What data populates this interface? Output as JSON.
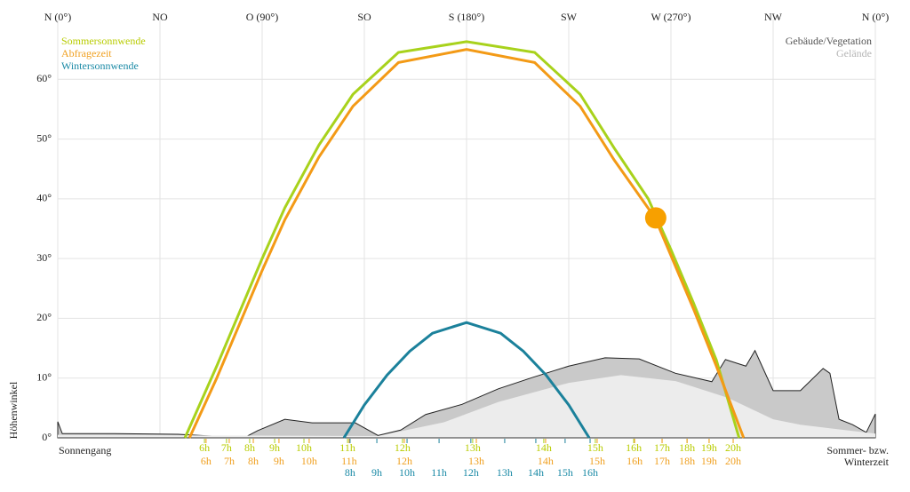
{
  "chart_data": {
    "type": "line",
    "y_label": "Höhenwinkel",
    "bottom_left_label": "Sonnengang",
    "bottom_right_label": [
      "Sommer- bzw.",
      "Winterzeit"
    ],
    "xlim": [
      0,
      360
    ],
    "ylim": [
      0,
      70
    ],
    "grid": true,
    "xticks": [
      {
        "value": 0,
        "label": "N (0°)"
      },
      {
        "value": 45,
        "label": "NO"
      },
      {
        "value": 90,
        "label": "O (90°)"
      },
      {
        "value": 135,
        "label": "SO"
      },
      {
        "value": 180,
        "label": "S (180°)"
      },
      {
        "value": 225,
        "label": "SW"
      },
      {
        "value": 270,
        "label": "W (270°)"
      },
      {
        "value": 315,
        "label": "NW"
      },
      {
        "value": 360,
        "label": "N (0°)"
      }
    ],
    "yticks": [
      {
        "value": 0,
        "label": "0°"
      },
      {
        "value": 10,
        "label": "10°"
      },
      {
        "value": 20,
        "label": "20°"
      },
      {
        "value": 30,
        "label": "30°"
      },
      {
        "value": 40,
        "label": "40°"
      },
      {
        "value": 50,
        "label": "50°"
      },
      {
        "value": 60,
        "label": "60°"
      }
    ],
    "terrain": [
      {
        "name": "Gebäude/Vegetation",
        "color": "#c9c9c9",
        "text_color": "#555555",
        "outline": "#222222",
        "x": [
          0,
          2,
          25,
          53,
          82,
          88,
          100,
          112,
          131,
          141,
          151,
          162,
          178,
          194,
          209,
          225,
          241,
          256,
          272,
          288,
          294,
          303,
          307,
          315,
          327,
          337,
          340,
          344,
          350,
          356,
          360
        ],
        "values": [
          2.7,
          0.7,
          0.7,
          0.6,
          0,
          1.2,
          3.1,
          2.5,
          2.5,
          0.4,
          1.3,
          3.9,
          5.6,
          8.2,
          10.1,
          12,
          13.4,
          13.2,
          10.8,
          9.4,
          13.1,
          12,
          14.6,
          7.9,
          7.9,
          11.6,
          10.8,
          3.1,
          2.2,
          0.9,
          4
        ]
      },
      {
        "name": "Gelände",
        "color": "#ececec",
        "text_color": "#b5b5b5",
        "x": [
          0,
          141,
          170,
          194,
          225,
          248,
          272,
          295,
          315,
          327,
          342,
          360
        ],
        "values": [
          0.5,
          0.3,
          2.6,
          6,
          9.2,
          10.5,
          9.5,
          6.7,
          3.1,
          2.2,
          1.5,
          0.7
        ]
      }
    ],
    "series": [
      {
        "name": "Sommersonnwende",
        "color": "#a8d21c",
        "text_color": "#b8cc00",
        "x": [
          56,
          70,
          80,
          90,
          100,
          115,
          130,
          150,
          180,
          210,
          230,
          245,
          260,
          270,
          280,
          290,
          300
        ],
        "values": [
          0,
          12,
          21,
          30,
          38.5,
          49,
          57.5,
          64.5,
          66.3,
          64.5,
          57.5,
          48.5,
          40,
          31.5,
          22.5,
          13,
          0
        ],
        "hour_ticks": [
          {
            "value": 64.6,
            "label": "6h"
          },
          {
            "value": 74.3,
            "label": "7h"
          },
          {
            "value": 84.5,
            "label": "8h"
          },
          {
            "value": 95.5,
            "label": "9h"
          },
          {
            "value": 108.4,
            "label": "10h"
          },
          {
            "value": 127.6,
            "label": "11h"
          },
          {
            "value": 151.8,
            "label": "12h"
          },
          {
            "value": 182.7,
            "label": "13h"
          },
          {
            "value": 214,
            "label": "14h"
          },
          {
            "value": 236.7,
            "label": "15h"
          },
          {
            "value": 253.6,
            "label": "16h"
          },
          {
            "value": 266.1,
            "label": "17h"
          },
          {
            "value": 277.1,
            "label": "18h"
          },
          {
            "value": 286.8,
            "label": "19h"
          },
          {
            "value": 297.4,
            "label": "20h"
          }
        ]
      },
      {
        "name": "Abfragezeit",
        "color": "#f39a16",
        "text_color": "#f0a020",
        "x": [
          58,
          70,
          80,
          90,
          100,
          115,
          130,
          150,
          180,
          210,
          230,
          245,
          263,
          270,
          280,
          290,
          302
        ],
        "values": [
          0,
          10,
          19,
          28,
          36.5,
          47,
          55.5,
          62.8,
          65,
          62.8,
          55.5,
          46.5,
          36.8,
          30.5,
          21.5,
          12,
          0
        ],
        "hour_ticks": [
          {
            "value": 65.3,
            "label": "6h"
          },
          {
            "value": 75.5,
            "label": "7h"
          },
          {
            "value": 86.1,
            "label": "8h"
          },
          {
            "value": 97.4,
            "label": "9h"
          },
          {
            "value": 110.7,
            "label": "10h"
          },
          {
            "value": 128.3,
            "label": "11h"
          },
          {
            "value": 152.6,
            "label": "12h"
          },
          {
            "value": 184.3,
            "label": "13h"
          },
          {
            "value": 214.8,
            "label": "14h"
          },
          {
            "value": 237.5,
            "label": "15h"
          },
          {
            "value": 254,
            "label": "16h"
          },
          {
            "value": 266.1,
            "label": "17h"
          },
          {
            "value": 277.1,
            "label": "18h"
          },
          {
            "value": 286.8,
            "label": "19h"
          },
          {
            "value": 297.4,
            "label": "20h"
          }
        ]
      },
      {
        "name": "Wintersonnwende",
        "color": "#1b819b",
        "text_color": "#1b8aa6",
        "x": [
          126,
          135,
          145,
          155,
          165,
          180,
          195,
          205,
          215,
          225,
          234
        ],
        "values": [
          0,
          5.5,
          10.5,
          14.5,
          17.5,
          19.3,
          17.5,
          14.5,
          10.5,
          5.5,
          0
        ],
        "hour_ticks": [
          {
            "value": 128.7,
            "label": "8h"
          },
          {
            "value": 140.5,
            "label": "9h"
          },
          {
            "value": 153.8,
            "label": "10h"
          },
          {
            "value": 167.9,
            "label": "11h"
          },
          {
            "value": 181.9,
            "label": "12h"
          },
          {
            "value": 196.8,
            "label": "13h"
          },
          {
            "value": 210.5,
            "label": "14h"
          },
          {
            "value": 223.4,
            "label": "15h"
          },
          {
            "value": 234.4,
            "label": "16h"
          }
        ]
      }
    ],
    "sun_position": {
      "azimuth": 263.3,
      "altitude": 36.8,
      "color": "#f7a000"
    }
  }
}
